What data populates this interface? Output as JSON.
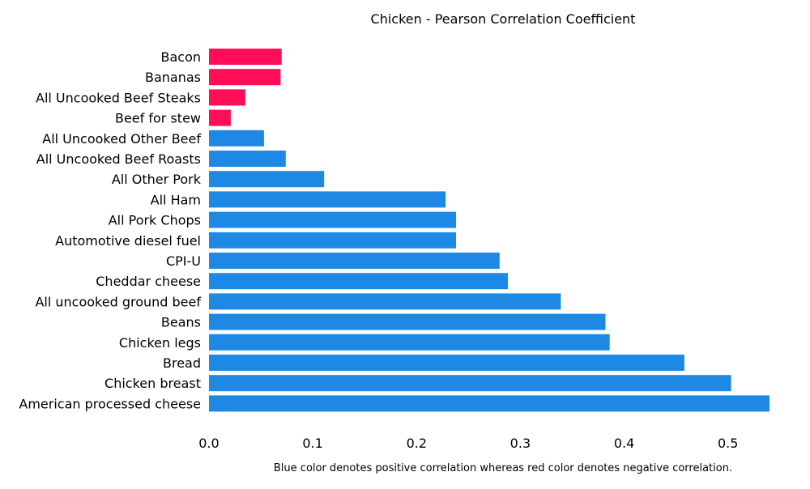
{
  "chart_data": {
    "type": "bar",
    "orientation": "horizontal",
    "title": "Chicken - Pearson Correlation Coefficient",
    "caption": "Blue color denotes positive correlation whereas red color denotes negative correlation.",
    "xlabel": "",
    "ylabel": "",
    "xlim": [
      0.0,
      0.54
    ],
    "xticks": [
      "0.0",
      "0.1",
      "0.2",
      "0.3",
      "0.4",
      "0.5"
    ],
    "grid": false,
    "colors": {
      "positive": "#1e88e5",
      "negative": "#ff0d57"
    },
    "categories": [
      "Bacon",
      "Bananas",
      "All Uncooked Beef Steaks",
      "Beef for stew",
      "All Uncooked Other Beef",
      "All Uncooked Beef Roasts",
      "All Other Pork",
      "All Ham",
      "All Pork Chops",
      "Automotive diesel fuel",
      "CPI-U",
      "Cheddar cheese",
      "All uncooked ground beef",
      "Beans",
      "Chicken legs",
      "Bread",
      "Chicken breast",
      "American processed cheese"
    ],
    "values": [
      0.07,
      0.069,
      0.035,
      0.021,
      0.053,
      0.074,
      0.111,
      0.228,
      0.238,
      0.238,
      0.28,
      0.288,
      0.339,
      0.382,
      0.386,
      0.458,
      0.503,
      0.54
    ],
    "sign": [
      "negative",
      "negative",
      "negative",
      "negative",
      "positive",
      "positive",
      "positive",
      "positive",
      "positive",
      "positive",
      "positive",
      "positive",
      "positive",
      "positive",
      "positive",
      "positive",
      "positive",
      "positive"
    ]
  }
}
